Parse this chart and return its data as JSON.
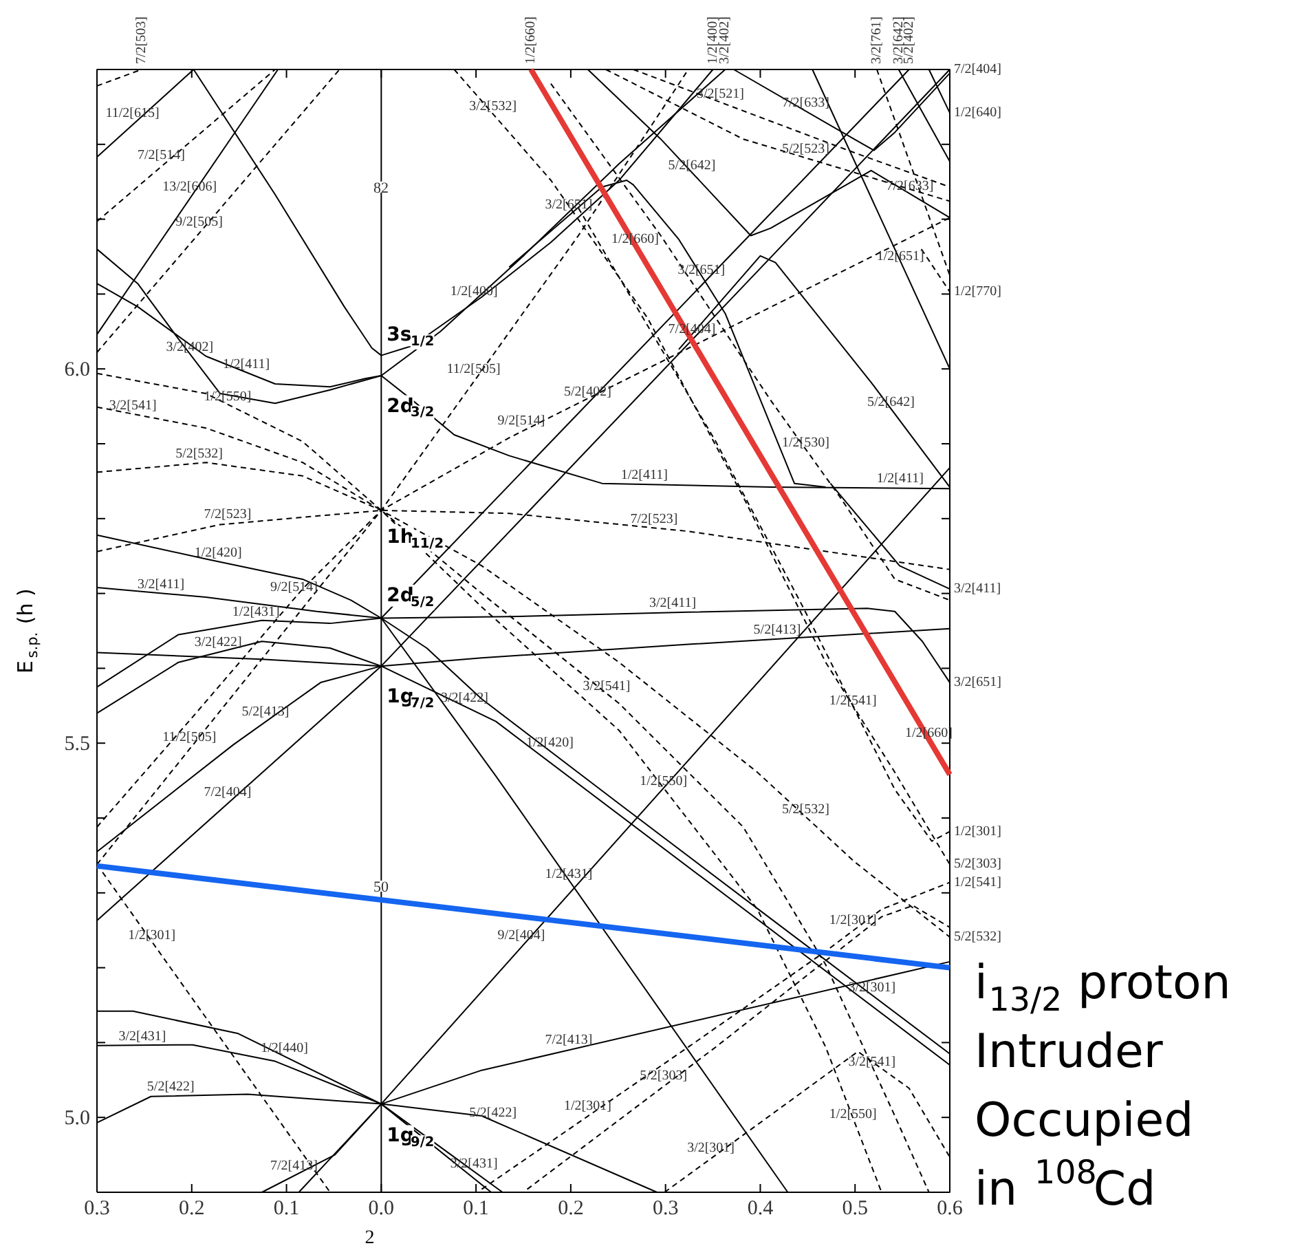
{
  "chart_data": {
    "type": "line",
    "xlabel": "2",
    "ylabel": "E$_{s.p.}$ (h )",
    "xlim": [
      -0.3,
      0.6
    ],
    "ylim": [
      4.9,
      6.4
    ],
    "xticks": [
      {
        "value": -0.3,
        "label": "0.3"
      },
      {
        "value": -0.2,
        "label": "0.2"
      },
      {
        "value": -0.1,
        "label": "0.1"
      },
      {
        "value": 0,
        "label": "0.0"
      },
      {
        "value": 0.1,
        "label": "0.1"
      },
      {
        "value": 0.2,
        "label": "0.2"
      },
      {
        "value": 0.3,
        "label": "0.3"
      },
      {
        "value": 0.4,
        "label": "0.4"
      },
      {
        "value": 0.5,
        "label": "0.5"
      },
      {
        "value": 0.6,
        "label": "0.6"
      }
    ],
    "yticks": [
      {
        "value": 4.9,
        "label": null
      },
      {
        "value": 5.0,
        "label": "5.0"
      },
      {
        "value": 5.1,
        "label": null
      },
      {
        "value": 5.2,
        "label": null
      },
      {
        "value": 5.3,
        "label": null
      },
      {
        "value": 5.4,
        "label": null
      },
      {
        "value": 5.5,
        "label": "5.5"
      },
      {
        "value": 5.6,
        "label": null
      },
      {
        "value": 5.7,
        "label": null
      },
      {
        "value": 5.8,
        "label": null
      },
      {
        "value": 5.9,
        "label": null
      },
      {
        "value": 6.0,
        "label": "6.0"
      },
      {
        "value": 6.1,
        "label": null
      },
      {
        "value": 6.2,
        "label": null
      },
      {
        "value": 6.3,
        "label": null
      },
      {
        "value": 6.4,
        "label": null
      }
    ],
    "grid": false,
    "marker": "none",
    "ref_lines": [
      {
        "axis": "x",
        "value": 0,
        "color": "#000000",
        "line_style": "solid"
      }
    ],
    "series": [
      {
        "color": "#000000",
        "line_style": "solid",
        "x": [
          -0.3,
          -0.198
        ],
        "values": [
          6.283,
          6.4
        ]
      },
      {
        "color": "#000000",
        "line_style": "solid",
        "x": [
          -0.3,
          -0.109
        ],
        "values": [
          6.046,
          6.4
        ]
      },
      {
        "color": "#000000",
        "line_style": "solid",
        "x": [
          -0.198,
          -0.112,
          -0.039,
          -0.01,
          0,
          0.033,
          0.106,
          0.179,
          0.251,
          0.35
        ],
        "values": [
          6.4,
          6.233,
          6.083,
          6.028,
          6.018,
          6.031,
          6.096,
          6.169,
          6.252,
          6.4
        ]
      },
      {
        "color": "#000000",
        "line_style": "solid",
        "x": [
          -0.3,
          -0.257,
          -0.214,
          -0.17,
          -0.112,
          -0.054,
          0,
          0.0625,
          0.15,
          0.251,
          0.363
        ],
        "values": [
          6.16,
          6.114,
          6.04,
          5.967,
          5.954,
          5.972,
          5.991,
          6.05,
          6.151,
          6.274,
          6.4
        ]
      },
      {
        "color": "#000000",
        "line_style": "solid",
        "x": [
          -0.3,
          -0.257,
          -0.185,
          -0.112,
          -0.054,
          -0.017,
          0,
          0.033,
          0.077,
          0.135,
          0.233,
          0.411,
          0.6
        ],
        "values": [
          6.114,
          6.083,
          6.017,
          5.98,
          5.976,
          5.987,
          5.991,
          5.958,
          5.912,
          5.884,
          5.847,
          5.842,
          5.84
        ]
      },
      {
        "color": "#000000",
        "line_style": "solid",
        "x": [
          -0.3,
          -0.185,
          -0.083,
          -0.032,
          0,
          0.048,
          0.106,
          0.251,
          0.397,
          0.6
        ],
        "values": [
          5.778,
          5.746,
          5.719,
          5.691,
          5.667,
          5.627,
          5.559,
          5.419,
          5.279,
          5.085
        ]
      },
      {
        "color": "#000000",
        "line_style": "solid",
        "x": [
          -0.3,
          -0.185,
          -0.068,
          0,
          0.135,
          0.324,
          0.513,
          0.542,
          0.571,
          0.6
        ],
        "values": [
          5.708,
          5.695,
          5.676,
          5.667,
          5.669,
          5.675,
          5.68,
          5.676,
          5.636,
          5.581
        ]
      },
      {
        "color": "#000000",
        "line_style": "solid",
        "x": [
          -0.3,
          -0.156,
          -0.064,
          0,
          0.106,
          0.324,
          0.6
        ],
        "values": [
          5.355,
          5.498,
          5.581,
          5.603,
          5.614,
          5.632,
          5.653
        ]
      },
      {
        "color": "#000000",
        "line_style": "solid",
        "x": [
          -0.3,
          0,
          0.6
        ],
        "values": [
          5.263,
          5.603,
          6.4
        ]
      },
      {
        "color": "#000000",
        "line_style": "solid",
        "x": [
          0,
          0.557
        ],
        "values": [
          5.667,
          6.4
        ]
      },
      {
        "color": "#000000",
        "line_style": "solid",
        "x": [
          -0.3,
          -0.214,
          -0.126,
          -0.054,
          0,
          0.121,
          0.429
        ],
        "values": [
          5.575,
          5.645,
          5.664,
          5.66,
          5.667,
          5.456,
          4.9
        ]
      },
      {
        "color": "#000000",
        "line_style": "solid",
        "x": [
          -0.3,
          -0.214,
          -0.126,
          -0.054,
          0,
          0.121,
          0.6
        ],
        "values": [
          5.54,
          5.608,
          5.636,
          5.627,
          5.603,
          5.529,
          5.07
        ]
      },
      {
        "color": "#000000",
        "line_style": "solid",
        "x": [
          -0.3,
          -0.126,
          0
        ],
        "values": [
          5.621,
          5.612,
          5.603
        ]
      },
      {
        "color": "#000000",
        "line_style": "solid",
        "x": [
          -0.087,
          0,
          0.6
        ],
        "values": [
          4.9,
          5.018,
          5.868
        ]
      },
      {
        "color": "#000000",
        "line_style": "solid",
        "x": [
          -0.3,
          -0.262,
          -0.151,
          0,
          0.116
        ],
        "values": [
          5.142,
          5.142,
          5.112,
          5.018,
          4.9
        ]
      },
      {
        "color": "#000000",
        "line_style": "solid",
        "x": [
          -0.3,
          -0.199,
          -0.112,
          0,
          0.077,
          0.128
        ],
        "values": [
          5.096,
          5.097,
          5.075,
          5.018,
          4.947,
          4.9
        ]
      },
      {
        "color": "#000000",
        "line_style": "solid",
        "x": [
          -0.3,
          -0.243,
          -0.141,
          0,
          0.106,
          0.291
        ],
        "values": [
          4.993,
          5.028,
          5.031,
          5.018,
          5.002,
          4.9
        ]
      },
      {
        "color": "#000000",
        "line_style": "solid",
        "x": [
          -0.126,
          -0.049,
          0,
          0.106,
          0.6
        ],
        "values": [
          4.9,
          4.95,
          5.018,
          5.063,
          5.208
        ]
      },
      {
        "color": "#000000",
        "line_style": "solid",
        "x": [
          0.218,
          0.295,
          0.39,
          0.411,
          0.517,
          0.6
        ],
        "values": [
          6.4,
          6.307,
          6.178,
          6.188,
          6.265,
          6.202
        ]
      },
      {
        "color": "#000000",
        "line_style": "solid",
        "x": [
          0.372,
          0.499,
          0.52,
          0.542,
          0.6
        ],
        "values": [
          6.4,
          6.307,
          6.292,
          6.316,
          6.395
        ]
      },
      {
        "color": "#000000",
        "line_style": "solid",
        "x": [
          0.135,
          0.233,
          0.259,
          0.266,
          0.314,
          0.363,
          0.436,
          0.469
        ],
        "values": [
          6.136,
          6.243,
          6.252,
          6.246,
          6.173,
          6.074,
          5.847,
          5.842
        ]
      },
      {
        "color": "#000000",
        "line_style": "solid",
        "x": [
          0.314,
          0.4,
          0.416,
          0.517,
          0.6
        ],
        "values": [
          6.026,
          6.151,
          6.142,
          5.982,
          5.842
        ]
      },
      {
        "color": "#000000",
        "line_style": "solid",
        "x": [
          0.455,
          0.6
        ],
        "values": [
          6.4,
          6.0
        ]
      },
      {
        "color": "#000000",
        "line_style": "solid",
        "x": [
          0.578,
          0.6
        ],
        "values": [
          6.4,
          6.342
        ]
      },
      {
        "color": "#000000",
        "line_style": "solid",
        "x": [
          0.546,
          0.6
        ],
        "values": [
          6.4,
          6.277
        ]
      },
      {
        "color": "#000000",
        "line_style": "solid",
        "x": [
          0.474,
          0.547,
          0.6
        ],
        "values": [
          5.847,
          5.737,
          5.706
        ]
      },
      {
        "color": "#000000",
        "line_style": "dashed",
        "x": [
          -0.3,
          -0.17,
          0,
          0.135,
          0.324,
          0.6
        ],
        "values": [
          5.756,
          5.792,
          5.811,
          5.807,
          5.783,
          5.732
        ]
      },
      {
        "color": "#000000",
        "line_style": "dashed",
        "x": [
          -0.3,
          -0.185,
          -0.083,
          0,
          0.106,
          0.251,
          0.397,
          0.499,
          0.6
        ],
        "values": [
          5.862,
          5.875,
          5.857,
          5.811,
          5.737,
          5.608,
          5.461,
          5.342,
          5.241
        ]
      },
      {
        "color": "#000000",
        "line_style": "dashed",
        "x": [
          -0.3,
          -0.185,
          -0.083,
          0,
          0.106,
          0.251,
          0.382,
          0.469,
          0.542,
          0.578
        ],
        "values": [
          5.949,
          5.921,
          5.875,
          5.811,
          5.7,
          5.553,
          5.388,
          5.204,
          5.002,
          4.9
        ]
      },
      {
        "color": "#000000",
        "line_style": "dashed",
        "x": [
          -0.3,
          -0.185,
          -0.083,
          0,
          0.106,
          0.251,
          0.397,
          0.469,
          0.528
        ],
        "values": [
          5.994,
          5.967,
          5.903,
          5.811,
          5.682,
          5.517,
          5.278,
          5.094,
          4.9
        ]
      },
      {
        "color": "#000000",
        "line_style": "dashed",
        "x": [
          -0.3,
          -0.199,
          -0.083,
          0,
          0.135,
          0.6
        ],
        "values": [
          5.388,
          5.535,
          5.706,
          5.811,
          5.908,
          6.202
        ]
      },
      {
        "color": "#000000",
        "line_style": "dashed",
        "x": [
          -0.3,
          0,
          0.121,
          0.208,
          0.295,
          0.324
        ],
        "values": [
          5.338,
          5.811,
          6.024,
          6.178,
          6.344,
          6.4
        ]
      },
      {
        "color": "#000000",
        "line_style": "dashed",
        "x": [
          -0.3,
          -0.112
        ],
        "values": [
          6.197,
          6.4
        ]
      },
      {
        "color": "#000000",
        "line_style": "dashed",
        "x": [
          -0.3,
          -0.044
        ],
        "values": [
          6.022,
          6.4
        ]
      },
      {
        "color": "#000000",
        "line_style": "dashed",
        "x": [
          -0.3,
          -0.253
        ],
        "values": [
          6.378,
          6.4
        ]
      },
      {
        "color": "#000000",
        "line_style": "dashed",
        "x": [
          0.237,
          0.382,
          0.6
        ],
        "values": [
          6.4,
          6.307,
          6.224
        ]
      },
      {
        "color": "#000000",
        "line_style": "dashed",
        "x": [
          0.266,
          0.499,
          0.6
        ],
        "values": [
          6.4,
          6.289,
          6.243
        ]
      },
      {
        "color": "#000000",
        "line_style": "dashed",
        "x": [
          0.523,
          0.6
        ],
        "values": [
          6.4,
          6.125
        ]
      },
      {
        "color": "#000000",
        "line_style": "dashed",
        "x": [
          0.57,
          0.6
        ],
        "values": [
          6.16,
          6.103
        ]
      },
      {
        "color": "#000000",
        "line_style": "dashed",
        "x": [
          0.179,
          0.295,
          0.411,
          0.484,
          0.542,
          0.6
        ],
        "values": [
          6.381,
          6.178,
          5.958,
          5.829,
          5.719,
          5.691
        ]
      },
      {
        "color": "#000000",
        "line_style": "dashed",
        "x": [
          0.208,
          0.353,
          0.445,
          0.542,
          0.581,
          0.6
        ],
        "values": [
          6.215,
          5.903,
          5.682,
          5.438,
          5.369,
          5.382
        ]
      },
      {
        "color": "#000000",
        "line_style": "dashed",
        "x": [
          0.077,
          0.179,
          0.281,
          0.382,
          0.469,
          0.542,
          0.6
        ],
        "values": [
          6.4,
          6.252,
          6.068,
          5.829,
          5.608,
          5.461,
          5.338
        ]
      },
      {
        "color": "#000000",
        "line_style": "dashed",
        "x": [
          -0.3,
          -0.054
        ],
        "values": [
          5.338,
          4.9
        ]
      },
      {
        "color": "#000000",
        "line_style": "dashed",
        "x": [
          0.106,
          0.324,
          0.469,
          0.528,
          0.6
        ],
        "values": [
          4.904,
          5.094,
          5.222,
          5.278,
          5.314
        ]
      },
      {
        "color": "#000000",
        "line_style": "dashed",
        "x": [
          0.154,
          0.353,
          0.528,
          0.561,
          0.6
        ],
        "values": [
          4.904,
          5.094,
          5.268,
          5.283,
          5.254
        ]
      },
      {
        "color": "#000000",
        "line_style": "dashed",
        "x": [
          0.299,
          0.503,
          0.557,
          0.6
        ],
        "values": [
          4.9,
          5.088,
          5.039,
          4.947
        ]
      },
      {
        "color": "#e53935",
        "line_style": "solid",
        "x": [
          0.158,
          0.6
        ],
        "values": [
          6.4,
          5.458
        ]
      },
      {
        "color": "#1565f0",
        "line_style": "solid",
        "x": [
          -0.3,
          0.6
        ],
        "values": [
          5.336,
          5.2
        ]
      }
    ],
    "annotations": [
      {
        "text": "7/2[503]",
        "x": -0.253,
        "y": 6.4
      },
      {
        "text": "1/2[660]",
        "x": 0.158,
        "y": 6.4
      },
      {
        "text": "1/2[400]",
        "x": 0.35,
        "y": 6.4
      },
      {
        "text": "3/2[402]",
        "x": 0.363,
        "y": 6.4
      },
      {
        "text": "3/2[761]",
        "x": 0.523,
        "y": 6.4
      },
      {
        "text": "3/2[642]",
        "x": 0.546,
        "y": 6.4
      },
      {
        "text": "5/2[402]",
        "x": 0.557,
        "y": 6.4
      },
      {
        "text": "7/2[404]",
        "x": 0.6,
        "y": 6.4
      },
      {
        "text": "1/2[640]",
        "x": 0.6,
        "y": 6.342
      },
      {
        "text": "1/2[770]",
        "x": 0.6,
        "y": 6.103
      },
      {
        "text": "3/2[411]",
        "x": 0.6,
        "y": 5.706
      },
      {
        "text": "3/2[651]",
        "x": 0.6,
        "y": 5.581
      },
      {
        "text": "1/2[301]",
        "x": 0.6,
        "y": 5.382
      },
      {
        "text": "5/2[303]",
        "x": 0.6,
        "y": 5.338
      },
      {
        "text": "1/2[541]",
        "x": 0.6,
        "y": 5.314
      },
      {
        "text": "5/2[532]",
        "x": 0.6,
        "y": 5.241
      },
      {
        "text": "11/2[615]",
        "x": -0.26,
        "y": 6.329
      },
      {
        "text": "7/2[514]",
        "x": -0.23,
        "y": 6.273
      },
      {
        "text": "13/2[606]",
        "x": -0.2,
        "y": 6.231
      },
      {
        "text": "9/2[505]",
        "x": -0.19,
        "y": 6.184
      },
      {
        "text": "82",
        "x": 0,
        "y": 6.243
      },
      {
        "text": "1/2[400]",
        "x": 0.1,
        "y": 6.091
      },
      {
        "text": "3s$_{1/2}$",
        "x": 0,
        "y": 6.045
      },
      {
        "text": "1/2[411]",
        "x": -0.14,
        "y": 5.994
      },
      {
        "text": "3/2[402]",
        "x": -0.2,
        "y": 6.017
      },
      {
        "text": "2d$_{3/2}$",
        "x": 0,
        "y": 5.95
      },
      {
        "text": "3/2[541]",
        "x": -0.26,
        "y": 5.939
      },
      {
        "text": "1/2[550]",
        "x": -0.16,
        "y": 5.951
      },
      {
        "text": "5/2[532]",
        "x": -0.19,
        "y": 5.874
      },
      {
        "text": "7/2[523]",
        "x": -0.16,
        "y": 5.793
      },
      {
        "text": "1h$_{11/2}$",
        "x": 0,
        "y": 5.775
      },
      {
        "text": "1/2[420]",
        "x": -0.17,
        "y": 5.742
      },
      {
        "text": "9/2[514]",
        "x": -0.09,
        "y": 5.696
      },
      {
        "text": "3/2[411]",
        "x": -0.23,
        "y": 5.7
      },
      {
        "text": "2d$_{5/2}$",
        "x": 0,
        "y": 5.697
      },
      {
        "text": "1/2[431]",
        "x": -0.13,
        "y": 5.663
      },
      {
        "text": "3/2[422]",
        "x": -0.17,
        "y": 5.622
      },
      {
        "text": "1g$_{7/2}$",
        "x": 0,
        "y": 5.562
      },
      {
        "text": "3/2[422]",
        "x": 0.09,
        "y": 5.548
      },
      {
        "text": "1/2[420]",
        "x": 0.18,
        "y": 5.488
      },
      {
        "text": "3/2[541]",
        "x": 0.24,
        "y": 5.564
      },
      {
        "text": "1/2[550]",
        "x": 0.3,
        "y": 5.437
      },
      {
        "text": "1/2[431]",
        "x": 0.2,
        "y": 5.313
      },
      {
        "text": "11/2[505]",
        "x": -0.2,
        "y": 5.496
      },
      {
        "text": "5/2[413]",
        "x": -0.12,
        "y": 5.53
      },
      {
        "text": "7/2[404]",
        "x": -0.16,
        "y": 5.422
      },
      {
        "text": "50",
        "x": 0,
        "y": 5.309
      },
      {
        "text": "1/2[301]",
        "x": -0.24,
        "y": 5.231
      },
      {
        "text": "1/2[440]",
        "x": -0.1,
        "y": 5.08
      },
      {
        "text": "3/2[431]",
        "x": -0.25,
        "y": 5.096
      },
      {
        "text": "5/2[422]",
        "x": -0.22,
        "y": 5.029
      },
      {
        "text": "7/2[413]",
        "x": -0.09,
        "y": 4.923
      },
      {
        "text": "1g$_{9/2}$",
        "x": 0,
        "y": 4.975
      },
      {
        "text": "5/2[422]",
        "x": 0.12,
        "y": 4.994
      },
      {
        "text": "3/2[431]",
        "x": 0.1,
        "y": 4.926
      },
      {
        "text": "9/2[404]",
        "x": 0.15,
        "y": 5.231
      },
      {
        "text": "7/2[413]",
        "x": 0.2,
        "y": 5.091
      },
      {
        "text": "1/2[301]",
        "x": 0.22,
        "y": 5.003
      },
      {
        "text": "5/2[303]",
        "x": 0.3,
        "y": 5.043
      },
      {
        "text": "3/2[301]",
        "x": 0.35,
        "y": 4.947
      },
      {
        "text": "1/2[301]",
        "x": 0.5,
        "y": 5.251
      },
      {
        "text": "5/2[532]",
        "x": 0.45,
        "y": 5.399
      },
      {
        "text": "1/2[541]",
        "x": 0.5,
        "y": 5.544
      },
      {
        "text": "1/2[660]",
        "x": 0.58,
        "y": 5.501
      },
      {
        "text": "3/2[301]",
        "x": 0.52,
        "y": 5.161
      },
      {
        "text": "3/2[541]",
        "x": 0.52,
        "y": 5.062
      },
      {
        "text": "1/2[550]",
        "x": 0.5,
        "y": 4.992
      },
      {
        "text": "3/2[411]",
        "x": 0.31,
        "y": 5.675
      },
      {
        "text": "5/2[413]",
        "x": 0.42,
        "y": 5.639
      },
      {
        "text": "1/2[411]",
        "x": 0.28,
        "y": 5.846
      },
      {
        "text": "1/2[411]",
        "x": 0.55,
        "y": 5.841
      },
      {
        "text": "7/2[523]",
        "x": 0.29,
        "y": 5.787
      },
      {
        "text": "9/2[514]",
        "x": 0.15,
        "y": 5.918
      },
      {
        "text": "5/2[402]",
        "x": 0.22,
        "y": 5.957
      },
      {
        "text": "7/2[404]",
        "x": 0.33,
        "y": 6.041
      },
      {
        "text": "11/2[505]",
        "x": 0.1,
        "y": 5.987
      },
      {
        "text": "1/2[530]",
        "x": 0.45,
        "y": 5.889
      },
      {
        "text": "5/2[642]",
        "x": 0.54,
        "y": 5.943
      },
      {
        "text": "1/2[651]",
        "x": 0.55,
        "y": 6.138
      },
      {
        "text": "7/2[633]",
        "x": 0.56,
        "y": 6.232
      },
      {
        "text": "7/2[633]",
        "x": 0.45,
        "y": 6.343
      },
      {
        "text": "3/2[521]",
        "x": 0.36,
        "y": 6.355
      },
      {
        "text": "5/2[523]",
        "x": 0.45,
        "y": 6.281
      },
      {
        "text": "5/2[642]",
        "x": 0.33,
        "y": 6.259
      },
      {
        "text": "3/2[651]",
        "x": 0.2,
        "y": 6.207
      },
      {
        "text": "3/2[651]",
        "x": 0.34,
        "y": 6.12
      },
      {
        "text": "1/2[660]",
        "x": 0.27,
        "y": 6.161
      },
      {
        "text": "3/2[532]",
        "x": 0.12,
        "y": 6.338
      },
      "i$_{13/2}$ proton",
      "Intruder",
      "Occupied",
      "in $^{108}$Cd"
    ]
  }
}
